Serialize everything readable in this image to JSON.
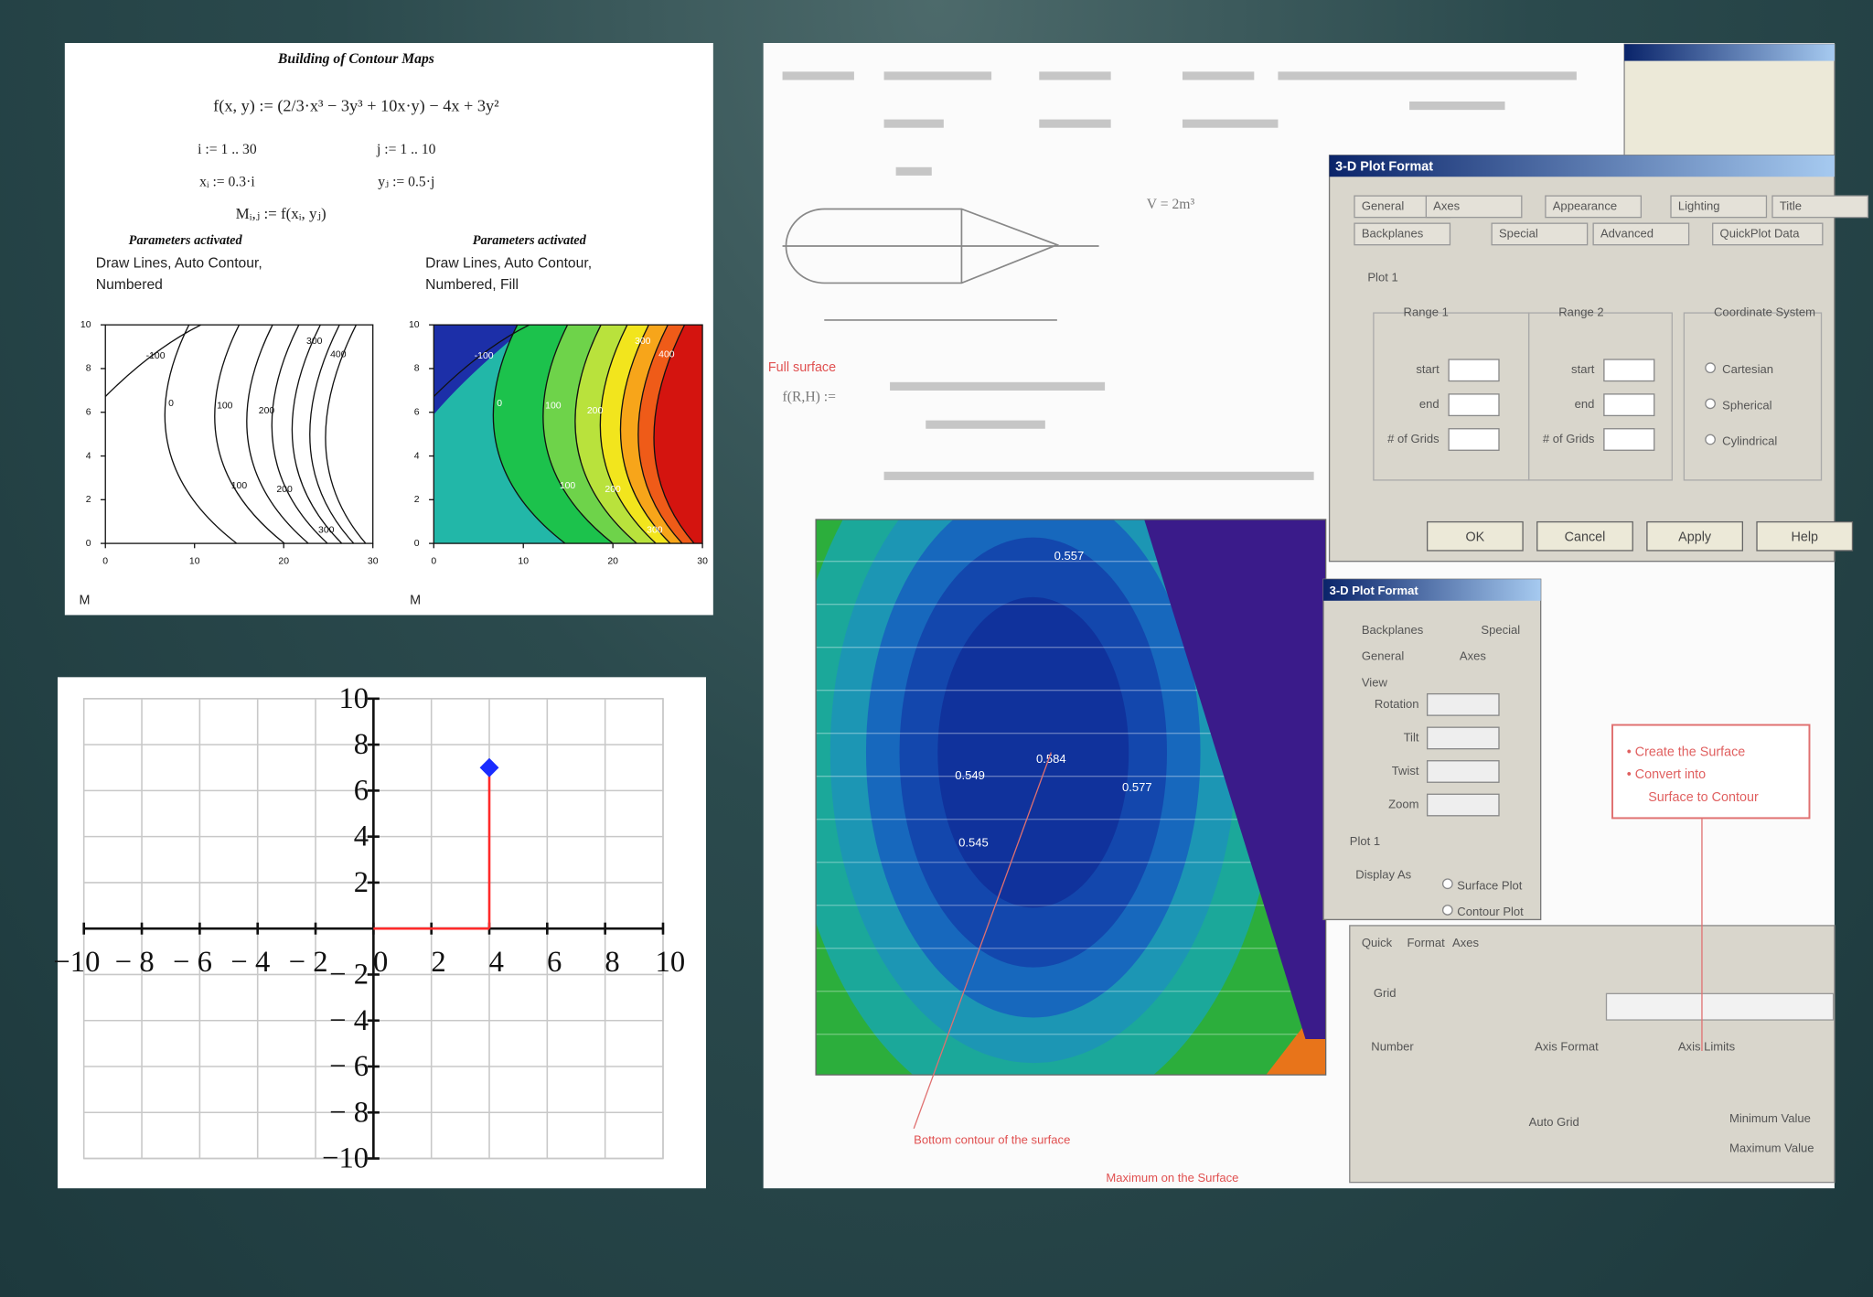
{
  "contour_sheet": {
    "title": "Building of Contour Maps",
    "definitions": [
      "f(x, y) := (2/3·x³ − 3y³ + 10x·y) − 4x + 3y²",
      "i := 1 .. 30",
      "j := 1 .. 10",
      "xᵢ := 0.3·i",
      "yⱼ := 0.5·j",
      "Mᵢ,ⱼ := f(xᵢ, yⱼ)"
    ],
    "plots": [
      {
        "heading": "Parameters activated",
        "settings": [
          "Draw Lines, Auto Contour,",
          "Numbered"
        ],
        "fill": false,
        "xticks": [
          0,
          10,
          20,
          30
        ],
        "yticks": [
          0,
          2,
          4,
          6,
          8,
          10
        ],
        "contour_labels": [
          -100,
          0,
          100,
          200,
          300,
          400,
          100,
          200,
          300
        ],
        "matrix_label": "M"
      },
      {
        "heading": "Parameters activated",
        "settings": [
          "Draw Lines, Auto Contour,",
          "Numbered, Fill"
        ],
        "fill": true,
        "xticks": [
          0,
          10,
          20,
          30
        ],
        "yticks": [
          0,
          2,
          4,
          6,
          8,
          10
        ],
        "contour_labels": [
          -100,
          0,
          100,
          200,
          300,
          400,
          100,
          200,
          300
        ],
        "matrix_label": "M"
      }
    ]
  },
  "chart_data": {
    "type": "scatter",
    "x": [
      4
    ],
    "values": [
      7
    ],
    "color": "#1a2cff",
    "drop_line_color": "#ff2a2a",
    "drop_lines": true,
    "grid": true,
    "xlim": [
      -10,
      10
    ],
    "ylim": [
      -10,
      10
    ],
    "xticks": [
      {
        "value": -10,
        "label": "−10"
      },
      {
        "value": -8,
        "label": "− 8"
      },
      {
        "value": -6,
        "label": "− 6"
      },
      {
        "value": -4,
        "label": "− 4"
      },
      {
        "value": -2,
        "label": "− 2"
      },
      0,
      2,
      4,
      6,
      8,
      10
    ],
    "yticks": [
      {
        "value": -10,
        "label": "−10"
      },
      {
        "value": -8,
        "label": "− 8"
      },
      {
        "value": -6,
        "label": "− 6"
      },
      {
        "value": -4,
        "label": "− 4"
      },
      {
        "value": -2,
        "label": "− 2"
      },
      2,
      4,
      6,
      8,
      10
    ]
  },
  "mathcad_screen": {
    "formula_labels": [
      "V = 2m³",
      "f(R,H) :="
    ],
    "annotations": [
      "Full surface",
      "Bottom contour of the surface",
      "Maximum on the Surface"
    ],
    "contour_labels": [
      0.557,
      0.584,
      0.577,
      0.549,
      0.545
    ],
    "dialog_main": {
      "title": "3-D Plot Format",
      "tabs": [
        "General",
        "Axes",
        "Appearance",
        "Lighting",
        "Title",
        "Backplanes",
        "Special",
        "Advanced",
        "QuickPlot Data"
      ],
      "plot_tab": "Plot 1",
      "groups": [
        "Range 1",
        "Range 2",
        "Coordinate System"
      ],
      "fields": [
        "start",
        "end",
        "# of Grids"
      ],
      "options": [
        "Cartesian",
        "Spherical",
        "Cylindrical"
      ],
      "buttons": [
        "OK",
        "Cancel",
        "Apply",
        "Help"
      ]
    },
    "dialog_view": {
      "title": "3-D Plot Format",
      "tabs": [
        "Backplanes",
        "Special",
        "General",
        "Axes"
      ],
      "group": "View",
      "fields": [
        "Rotation",
        "Tilt",
        "Twist",
        "Zoom"
      ],
      "plot_tab": "Plot 1",
      "display": "Display As",
      "options": [
        "Surface Plot",
        "Contour Plot"
      ]
    },
    "dialog_axes": {
      "tabs": [
        "Quick",
        "Format",
        "Axes"
      ],
      "labels": [
        "Grid",
        "Axis Format",
        "Axis Limits",
        "Number",
        "Auto Grid",
        "Minimum Value",
        "Maximum Value"
      ]
    },
    "note": [
      "• Create the Surface",
      "• Convert into",
      "Surface to Contour"
    ]
  }
}
